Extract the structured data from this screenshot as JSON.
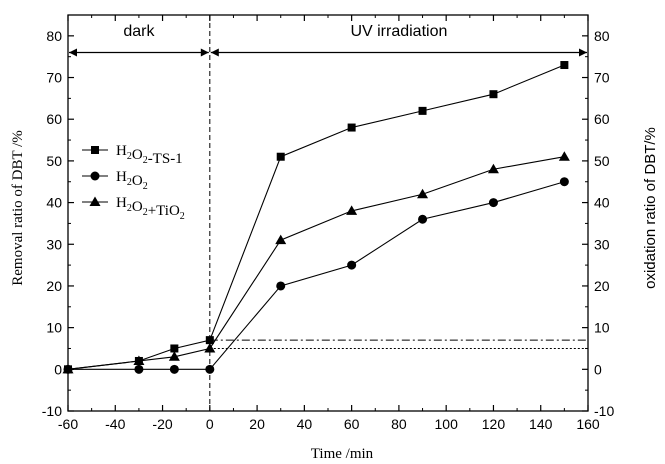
{
  "chart_data": {
    "type": "line",
    "xlabel": "Time /min",
    "ylabel": "Removal ratio of DBT /%",
    "ylabel_right": "oxidation ratio of DBT/%",
    "xlim": [
      -60,
      160
    ],
    "ylim": [
      -10,
      85
    ],
    "xticks": [
      -60,
      -40,
      -20,
      0,
      20,
      40,
      60,
      80,
      100,
      120,
      140,
      160
    ],
    "yticks": [
      -10,
      0,
      10,
      20,
      30,
      40,
      50,
      60,
      70,
      80
    ],
    "regions": [
      {
        "label": "dark",
        "x_range": [
          -60,
          0
        ]
      },
      {
        "label": "UV irradiation",
        "x_range": [
          0,
          160
        ]
      }
    ],
    "series": [
      {
        "name_parts": [
          {
            "t": "H",
            "s": ""
          },
          {
            "t": "2",
            "s": "sub"
          },
          {
            "t": "O",
            "s": ""
          },
          {
            "t": "2",
            "s": "sub"
          },
          {
            "t": "-TS-1",
            "s": ""
          }
        ],
        "marker": "square",
        "x": [
          -60,
          -30,
          -15,
          0,
          30,
          60,
          90,
          120,
          150
        ],
        "y": [
          0,
          2,
          5,
          7,
          51,
          58,
          62,
          66,
          73
        ]
      },
      {
        "name_parts": [
          {
            "t": "H",
            "s": ""
          },
          {
            "t": "2",
            "s": "sub"
          },
          {
            "t": "O",
            "s": ""
          },
          {
            "t": "2",
            "s": "sub"
          }
        ],
        "marker": "circle",
        "x": [
          -60,
          -30,
          -15,
          0,
          30,
          60,
          90,
          120,
          150
        ],
        "y": [
          0,
          0,
          0,
          0,
          20,
          25,
          36,
          40,
          45
        ]
      },
      {
        "name_parts": [
          {
            "t": "H",
            "s": ""
          },
          {
            "t": "2",
            "s": "sub"
          },
          {
            "t": "O",
            "s": ""
          },
          {
            "t": "2",
            "s": "sub"
          },
          {
            "t": "+TiO",
            "s": ""
          },
          {
            "t": "2",
            "s": "sub"
          }
        ],
        "marker": "triangle",
        "x": [
          -60,
          -30,
          -15,
          0,
          30,
          60,
          90,
          120,
          150
        ],
        "y": [
          0,
          2,
          3,
          5,
          31,
          38,
          42,
          48,
          51
        ]
      }
    ],
    "reference_lines": [
      {
        "y": 7,
        "style": "dash-dot"
      },
      {
        "y": 5,
        "style": "dotted"
      }
    ],
    "legend_position": "upper-left",
    "grid": false
  }
}
